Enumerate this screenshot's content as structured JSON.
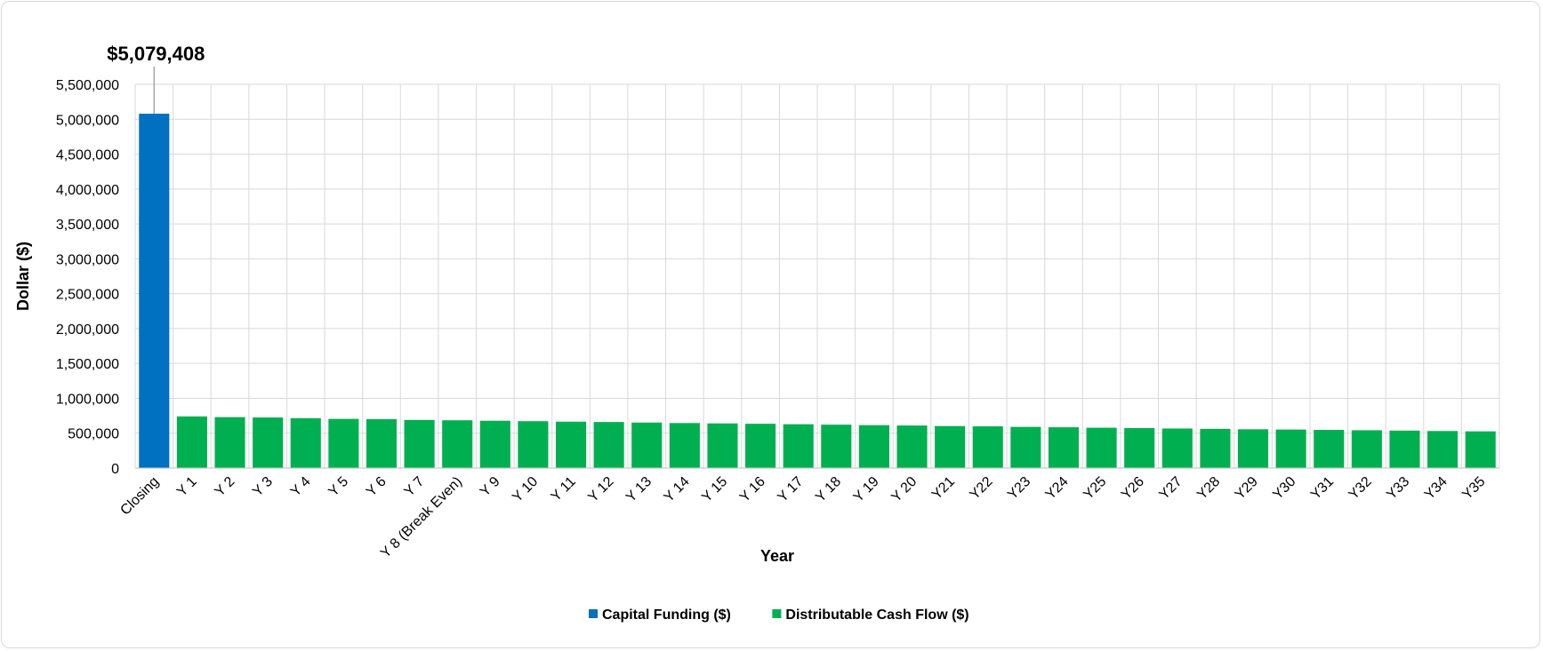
{
  "chart_data": {
    "type": "bar",
    "xlabel": "Year",
    "ylabel": "Dollar ($)",
    "ylim": [
      0,
      5500000
    ],
    "ytick_step": 500000,
    "ytick_labels": [
      "0",
      "500,000",
      "1,000,000",
      "1,500,000",
      "2,000,000",
      "2,500,000",
      "3,000,000",
      "3,500,000",
      "4,000,000",
      "4,500,000",
      "5,000,000",
      "5,500,000"
    ],
    "grid": true,
    "legend_position": "bottom",
    "categories": [
      "Closing",
      "Y 1",
      "Y 2",
      "Y 3",
      "Y 4",
      "Y 5",
      "Y 6",
      "Y 7",
      "Y 8 (Break Even)",
      "Y 9",
      "Y 10",
      "Y 11",
      "Y 12",
      "Y 13",
      "Y 14",
      "Y 15",
      "Y 16",
      "Y 17",
      "Y 18",
      "Y 19",
      "Y 20",
      "Y21",
      "Y22",
      "Y23",
      "Y24",
      "Y25",
      "Y26",
      "Y27",
      "Y28",
      "Y29",
      "Y30",
      "Y31",
      "Y32",
      "Y33",
      "Y34",
      "Y35"
    ],
    "series": [
      {
        "name": "Capital Funding ($)",
        "color": "#0070c0",
        "values": [
          5079408,
          null,
          null,
          null,
          null,
          null,
          null,
          null,
          null,
          null,
          null,
          null,
          null,
          null,
          null,
          null,
          null,
          null,
          null,
          null,
          null,
          null,
          null,
          null,
          null,
          null,
          null,
          null,
          null,
          null,
          null,
          null,
          null,
          null,
          null,
          null
        ]
      },
      {
        "name": "Distributable Cash Flow ($)",
        "color": "#00b050",
        "values": [
          null,
          740000,
          730000,
          725000,
          715000,
          705000,
          700000,
          690000,
          685000,
          678000,
          672000,
          665000,
          660000,
          652000,
          645000,
          640000,
          635000,
          628000,
          622000,
          615000,
          610000,
          602000,
          598000,
          590000,
          585000,
          578000,
          573000,
          567000,
          562000,
          556000,
          552000,
          547000,
          542000,
          537000,
          531000,
          526000
        ]
      }
    ],
    "annotations": [
      {
        "category": "Closing",
        "value": 5079408,
        "label": "$5,079,408"
      }
    ]
  }
}
